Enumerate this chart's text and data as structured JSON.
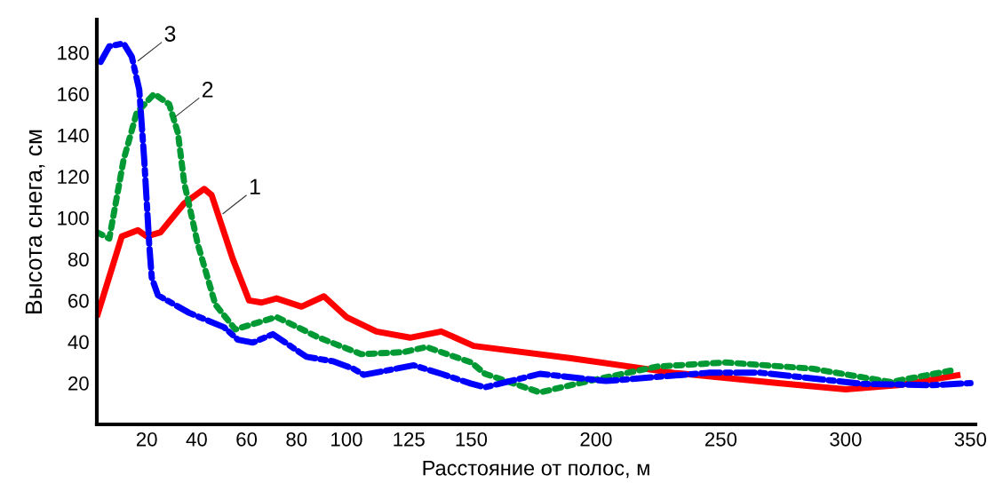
{
  "chart_data": {
    "type": "line",
    "xlabel": "Расстояние от полос, м",
    "ylabel": "Высота снега, см",
    "xlim": [
      0,
      352
    ],
    "ylim": [
      0,
      196
    ],
    "xticks": [
      20,
      40,
      60,
      80,
      100,
      125,
      150,
      200,
      250,
      300,
      350
    ],
    "yticks": [
      20,
      40,
      60,
      80,
      100,
      120,
      140,
      160,
      180
    ],
    "grid": false,
    "marker": "none",
    "series": [
      {
        "color": "#ff0000",
        "line_style": "solid",
        "x": [
          0,
          10,
          16.5,
          20,
          25.5,
          35,
          43,
          46,
          54.5,
          61,
          66,
          72,
          82,
          91,
          100,
          112,
          125.5,
          138,
          151,
          190,
          231,
          273,
          300,
          321,
          346
        ],
        "values": [
          52,
          91,
          94,
          91,
          93,
          107,
          114,
          111,
          80,
          60,
          59,
          61,
          57,
          62,
          52,
          45,
          42,
          45,
          38,
          32,
          25,
          20,
          17,
          19,
          24
        ]
      },
      {
        "color": "#009933",
        "line_style": "dotted",
        "x": [
          0,
          5,
          10.7,
          16,
          23,
          29,
          32.5,
          35,
          40.5,
          47.5,
          55.5,
          72,
          89,
          106,
          123,
          132,
          150,
          155.5,
          177.5,
          197,
          224.5,
          252,
          286.5,
          318,
          342
        ],
        "values": [
          93,
          90,
          128,
          151,
          160,
          155,
          141,
          117,
          87,
          58,
          46,
          52,
          42,
          34,
          35,
          37.5,
          30,
          24.5,
          15.5,
          21,
          28,
          30,
          27,
          20.5,
          26
        ]
      },
      {
        "color": "#0000ff",
        "line_style": "dashdot",
        "x": [
          1.5,
          5,
          10.7,
          14,
          17,
          19,
          21,
          22,
          24.5,
          37,
          51,
          56.5,
          62.5,
          70.5,
          84,
          94.5,
          102.7,
          107,
          127,
          138,
          150,
          155.5,
          177.5,
          204,
          245,
          266,
          307,
          335,
          350
        ],
        "values": [
          175.5,
          183,
          184.5,
          178,
          162,
          128,
          87,
          71,
          62.5,
          54,
          47,
          41,
          39.6,
          43.7,
          32.7,
          30.6,
          27,
          24,
          28.6,
          24.5,
          19.7,
          18,
          24.5,
          21,
          25,
          25,
          19.6,
          19,
          20
        ]
      }
    ],
    "annotations": [
      {
        "text": "1",
        "x": 50.5,
        "y": 102
      },
      {
        "text": "2",
        "x": 31.5,
        "y": 149
      },
      {
        "text": "3",
        "x": 16.5,
        "y": 176
      }
    ]
  }
}
